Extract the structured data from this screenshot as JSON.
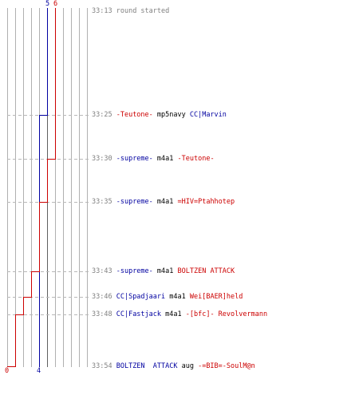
{
  "chart_data": {
    "type": "line",
    "score_axis": {
      "min": 0,
      "max": 10,
      "labels_visible": [
        5,
        6,
        4,
        0
      ]
    },
    "start_labels": {
      "blue": "5",
      "red": "6"
    },
    "end_labels": {
      "blue": "4",
      "red": "0"
    },
    "colors": {
      "blue": "#0000a0",
      "red": "#cc0000",
      "grid": "#b0b0b0",
      "gridDark": "#606060",
      "dash": "#b8b8b8"
    },
    "series": [
      {
        "color": "blue",
        "values": [
          5,
          4,
          4,
          4,
          4,
          4,
          4,
          4
        ]
      },
      {
        "color": "red",
        "values": [
          6,
          6,
          5,
          4,
          3,
          2,
          1,
          0
        ]
      }
    ],
    "events": [
      {
        "time": "33:13",
        "parts": [
          {
            "text": "round started",
            "color": "#808080"
          }
        ]
      },
      {
        "time": "33:25",
        "parts": [
          {
            "text": "-Teutone-",
            "color": "#cc0000"
          },
          {
            "text": " mp5navy ",
            "color": "#000000"
          },
          {
            "text": "CC|Marvin",
            "color": "#0000a0"
          }
        ]
      },
      {
        "time": "33:30",
        "parts": [
          {
            "text": "-supreme-",
            "color": "#0000a0"
          },
          {
            "text": " m4a1 ",
            "color": "#000000"
          },
          {
            "text": "-Teutone-",
            "color": "#cc0000"
          }
        ]
      },
      {
        "time": "33:35",
        "parts": [
          {
            "text": "-supreme-",
            "color": "#0000a0"
          },
          {
            "text": " m4a1 ",
            "color": "#000000"
          },
          {
            "text": "=HIV=Ptahhotep",
            "color": "#cc0000"
          }
        ]
      },
      {
        "time": "33:43",
        "parts": [
          {
            "text": "-supreme-",
            "color": "#0000a0"
          },
          {
            "text": " m4a1 ",
            "color": "#000000"
          },
          {
            "text": "BOLTZEN ATTACK",
            "color": "#cc0000"
          }
        ]
      },
      {
        "time": "33:46",
        "parts": [
          {
            "text": "CC|Spadjaari",
            "color": "#0000a0"
          },
          {
            "text": " m4a1 ",
            "color": "#000000"
          },
          {
            "text": "Wei[BAER]held",
            "color": "#cc0000"
          }
        ]
      },
      {
        "time": "33:48",
        "parts": [
          {
            "text": "CC|Fastjack",
            "color": "#0000a0"
          },
          {
            "text": " m4a1 ",
            "color": "#000000"
          },
          {
            "text": "-[bfc]- Revolvermann",
            "color": "#cc0000"
          }
        ]
      },
      {
        "time": "33:54",
        "parts": [
          {
            "text": "BOLTZEN  ATTACK",
            "color": "#0000a0"
          },
          {
            "text": " aug ",
            "color": "#000000"
          },
          {
            "text": "-=BIB=-SoulM@n",
            "color": "#cc0000"
          }
        ]
      }
    ]
  }
}
